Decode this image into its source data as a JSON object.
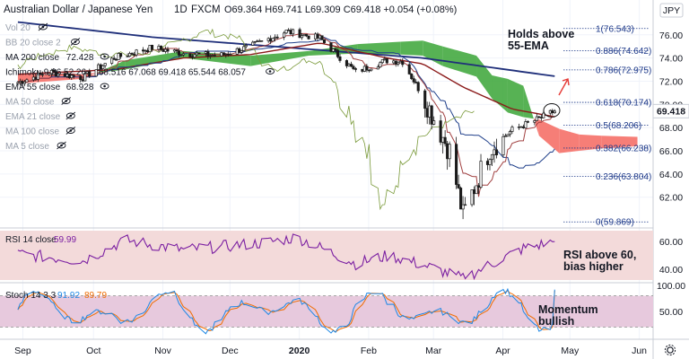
{
  "header": {
    "symbol": "Australian Dollar / Japanese Yen",
    "interval": "1D",
    "exchange": "FXCM",
    "ohlc": "O69.364 H69.741 L69.309 C69.418 +0.054 (+0.08%)",
    "currency": "JPY"
  },
  "legend": [
    {
      "label": "Vol 20",
      "value": "",
      "eye": "eye-slash",
      "muted": true
    },
    {
      "label": "BB 20 close 2",
      "value": "",
      "eye": "eye-slash",
      "muted": true
    },
    {
      "label": "MA 200 close",
      "value": "72.428",
      "eye": "eye",
      "muted": false
    },
    {
      "label": "Ichimoku 9 26 52 26",
      "value": "68.516 67.068 69.418 65.544 68.057",
      "eye": "eye",
      "muted": false
    },
    {
      "label": "EMA 55 close",
      "value": "68.928",
      "eye": "eye",
      "muted": false
    },
    {
      "label": "MA 50 close",
      "value": "",
      "eye": "eye-slash",
      "muted": true
    },
    {
      "label": "EMA 21 close",
      "value": "",
      "eye": "eye-slash",
      "muted": true
    },
    {
      "label": "MA 100 close",
      "value": "",
      "eye": "eye-slash",
      "muted": true
    },
    {
      "label": "MA 5 close",
      "value": "",
      "eye": "eye-slash",
      "muted": true
    }
  ],
  "annotations": {
    "ema_note_line1": "Holds above",
    "ema_note_line2": "55-EMA",
    "rsi_note_line1": "RSI above 60,",
    "rsi_note_line2": "bias higher",
    "stoch_note_line1": "Momentum",
    "stoch_note_line2": "bullish"
  },
  "rsi": {
    "label": "RSI 14 close",
    "value": "59.99"
  },
  "stoch": {
    "label": "Stoch 14 3 3",
    "k": "91.92",
    "d": "89.79"
  },
  "last_price": "69.418",
  "colors": {
    "candle": "#1a1a1a",
    "ema": "#8b1a1a",
    "ma200": "#1f2f7a",
    "kumo_bull": "#3aa536",
    "kumo_bear": "#f4675f",
    "kijun": "#1f3f8a",
    "tenkan": "#a14040",
    "chikou": "#7a9a3a",
    "rsi": "#7b1fa2",
    "rsi_band": "#f3dada",
    "stoch_k": "#1e88e5",
    "stoch_d": "#ef6c00",
    "stoch_band": "#e7c9dd",
    "fib": "#1e3a8a",
    "arrow": "#e53935"
  },
  "chart_data": [
    {
      "type": "candlestick",
      "title": "Australian Dollar / Japanese Yen, 1D, FXCM",
      "ylim": [
        59.5,
        77.3
      ],
      "y_ticks": [
        62,
        64,
        66,
        68,
        70,
        72,
        74,
        76
      ],
      "x_labels": [
        "Sep",
        "Oct",
        "Nov",
        "Dec",
        "2020",
        "Feb",
        "Mar",
        "Apr",
        "May",
        "Jun"
      ],
      "close_anchors": [
        [
          "2019-09-02",
          71.9
        ],
        [
          "2019-09-16",
          72.8
        ],
        [
          "2019-10-01",
          72.3
        ],
        [
          "2019-10-15",
          74.0
        ],
        [
          "2019-11-01",
          74.9
        ],
        [
          "2019-11-15",
          74.4
        ],
        [
          "2019-12-01",
          74.2
        ],
        [
          "2019-12-15",
          75.0
        ],
        [
          "2019-12-31",
          76.3
        ],
        [
          "2020-01-15",
          75.7
        ],
        [
          "2020-01-31",
          72.8
        ],
        [
          "2020-02-14",
          73.8
        ],
        [
          "2020-02-21",
          73.7
        ],
        [
          "2020-03-02",
          70.4
        ],
        [
          "2020-03-13",
          66.0
        ],
        [
          "2020-03-19",
          60.4
        ],
        [
          "2020-03-31",
          66.2
        ],
        [
          "2020-04-10",
          67.8
        ],
        [
          "2020-04-20",
          68.6
        ],
        [
          "2020-04-29",
          69.418
        ]
      ],
      "ema55": [
        [
          "2019-09-02",
          72.6
        ],
        [
          "2019-10-15",
          73.0
        ],
        [
          "2019-11-15",
          74.0
        ],
        [
          "2019-12-15",
          74.3
        ],
        [
          "2020-01-15",
          75.3
        ],
        [
          "2020-02-14",
          74.0
        ],
        [
          "2020-03-01",
          73.5
        ],
        [
          "2020-03-19",
          71.5
        ],
        [
          "2020-04-10",
          69.6
        ],
        [
          "2020-04-29",
          68.93
        ]
      ],
      "ma200": [
        [
          "2019-09-02",
          77.1
        ],
        [
          "2019-11-01",
          75.8
        ],
        [
          "2020-01-01",
          74.9
        ],
        [
          "2020-03-01",
          74.0
        ],
        [
          "2020-04-29",
          72.43
        ]
      ],
      "ichimoku_cloud": [
        [
          "2019-09-02",
          71.8,
          72.6
        ],
        [
          "2019-10-01",
          72.2,
          72.6
        ],
        [
          "2019-10-20",
          73.8,
          73.0
        ],
        [
          "2019-11-15",
          74.6,
          74.0
        ],
        [
          "2019-12-15",
          74.2,
          73.3
        ],
        [
          "2020-01-10",
          74.6,
          74.2
        ],
        [
          "2020-02-01",
          75.2,
          74.4
        ],
        [
          "2020-02-20",
          75.4,
          74.3
        ],
        [
          "2020-03-01",
          75.5,
          74.2
        ],
        [
          "2020-03-10",
          75.0,
          73.3
        ],
        [
          "2020-03-25",
          74.2,
          72.4
        ],
        [
          "2020-04-01",
          72.5,
          70.5
        ],
        [
          "2020-04-08",
          72.2,
          69.3
        ],
        [
          "2020-04-15",
          71.6,
          68.9
        ],
        [
          "2020-04-22",
          67.3,
          68.7
        ],
        [
          "2020-05-01",
          65.8,
          67.9
        ],
        [
          "2020-05-10",
          66.0,
          67.4
        ],
        [
          "2020-05-20",
          66.2,
          67.3
        ],
        [
          "2020-06-05",
          66.4,
          67.2
        ]
      ],
      "fibonacci": [
        {
          "level": "1",
          "price": 76.543
        },
        {
          "level": "0.886",
          "price": 74.642
        },
        {
          "level": "0.786",
          "price": 72.975
        },
        {
          "level": "0.618",
          "price": 70.174
        },
        {
          "level": "0.5",
          "price": 68.206
        },
        {
          "level": "0.382",
          "price": 66.238
        },
        {
          "level": "0.236",
          "price": 63.804
        },
        {
          "level": "0",
          "price": 59.869
        }
      ],
      "last_price": 69.418
    },
    {
      "type": "line",
      "title": "RSI 14 close",
      "ylim": [
        32,
        68
      ],
      "y_ticks": [
        40,
        60
      ],
      "band": [
        30,
        70
      ],
      "anchors": [
        [
          "2019-09-02",
          51
        ],
        [
          "2019-10-01",
          46
        ],
        [
          "2019-10-20",
          61
        ],
        [
          "2019-11-15",
          54
        ],
        [
          "2019-12-20",
          59
        ],
        [
          "2020-01-05",
          63
        ],
        [
          "2020-01-31",
          44
        ],
        [
          "2020-02-15",
          50
        ],
        [
          "2020-03-05",
          41
        ],
        [
          "2020-03-19",
          33
        ],
        [
          "2020-04-01",
          44
        ],
        [
          "2020-04-15",
          55
        ],
        [
          "2020-04-29",
          59.99
        ]
      ]
    },
    {
      "type": "line",
      "title": "Stoch 14 3 3",
      "ylim": [
        0,
        100
      ],
      "y_ticks": [
        50,
        100
      ],
      "band": [
        20,
        80
      ],
      "series_k_last": 91.92,
      "series_d_last": 89.79
    }
  ]
}
